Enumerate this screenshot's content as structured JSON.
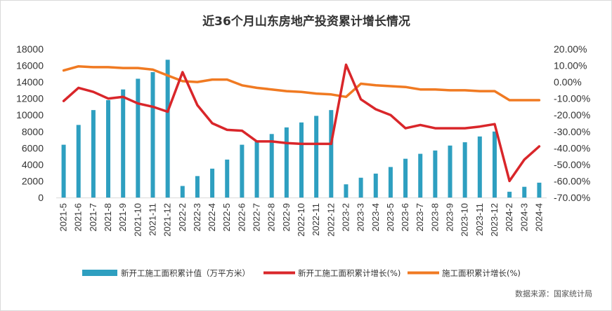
{
  "chart_data": {
    "type": "bar+line",
    "title": "近36个月山东房地产投资累计增长情况",
    "categories": [
      "2021-5",
      "2021-6",
      "2021-7",
      "2021-8",
      "2021-9",
      "2021-10",
      "2021-11",
      "2021-12",
      "2022-2",
      "2022-3",
      "2022-4",
      "2022-5",
      "2022-6",
      "2022-7",
      "2022-8",
      "2022-9",
      "2022-10",
      "2022-11",
      "2022-12",
      "2023-2",
      "2023-3",
      "2023-4",
      "2023-5",
      "2023-6",
      "2023-7",
      "2023-8",
      "2023-9",
      "2023-10",
      "2023-11",
      "2023-12",
      "2024-2",
      "2024-3",
      "2024-4"
    ],
    "series": [
      {
        "name": "新开工施工面积累计值（万平方米）",
        "type": "bar",
        "axis": "left",
        "color": "#2e9fc0",
        "values": [
          6400,
          8800,
          10600,
          11800,
          13100,
          14400,
          15200,
          16700,
          1400,
          2600,
          3500,
          4600,
          6400,
          6900,
          7700,
          8500,
          9100,
          9900,
          10600,
          1600,
          2400,
          2900,
          3700,
          4700,
          5300,
          5700,
          6300,
          6700,
          7400,
          8000,
          700,
          1300,
          1800
        ]
      },
      {
        "name": "新开工施工面积累计增长(%)",
        "type": "line",
        "axis": "right",
        "color": "#d9262a",
        "values": [
          -11.5,
          -3.5,
          -6,
          -10,
          -9,
          -13,
          -15,
          -18,
          6,
          -14,
          -25,
          -29,
          -29.5,
          -36,
          -36,
          -37,
          -37.5,
          -37.5,
          -37.5,
          10.5,
          -10.5,
          -16.5,
          -20,
          -28,
          -26,
          -28,
          -28,
          -28,
          -27,
          -25.5,
          -60,
          -47,
          -39
        ]
      },
      {
        "name": "施工面积累计增长(%)",
        "type": "line",
        "axis": "right",
        "color": "#f07a22",
        "values": [
          7,
          9.5,
          9,
          9,
          8.5,
          8.5,
          7.5,
          4,
          0.5,
          0,
          1.5,
          1.5,
          -2,
          -3.5,
          -4.5,
          -5.5,
          -6,
          -7,
          -7.5,
          -9,
          -1,
          -2,
          -2.5,
          -3,
          -4.5,
          -4.5,
          -5,
          -5,
          -5.5,
          -5.5,
          -11,
          -11,
          -11
        ]
      }
    ],
    "y_left": {
      "min": 0,
      "max": 18000,
      "ticks": [
        "18000",
        "16000",
        "14000",
        "12000",
        "10000",
        "8000",
        "6000",
        "4000",
        "2000",
        "0"
      ]
    },
    "y_right": {
      "min": -70,
      "max": 20,
      "ticks": [
        "20.00%",
        "10.00%",
        "0.00%",
        "-10.00%",
        "-20.00%",
        "-30.00%",
        "-40.00%",
        "-50.00%",
        "-60.00%",
        "-70.00%"
      ]
    },
    "legend": [
      "新开工施工面积累计值（万平方米）",
      "新开工施工面积累计增长(%)",
      "施工面积累计增长(%)"
    ],
    "legend_position": "bottom",
    "source": "数据来源：国家统计局"
  }
}
